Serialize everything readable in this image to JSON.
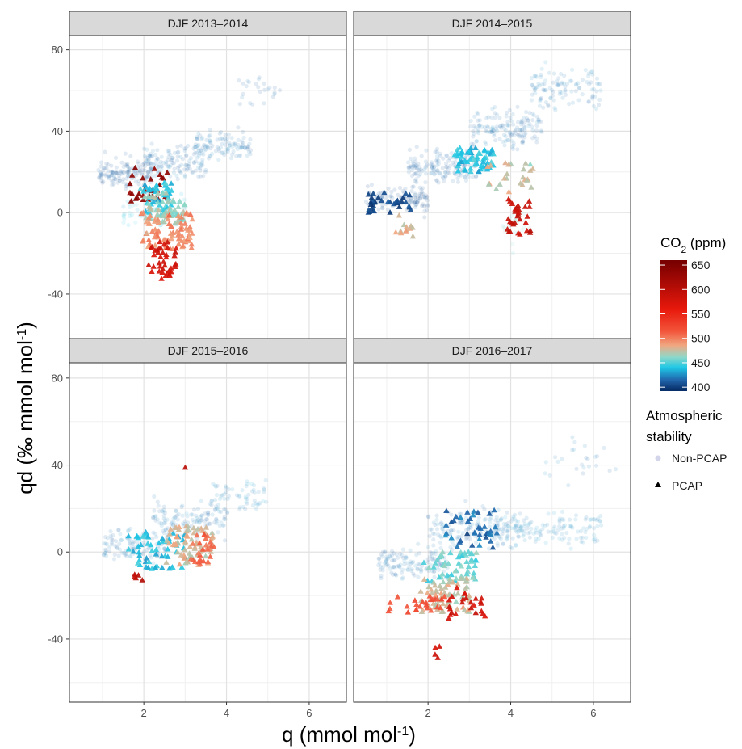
{
  "chart_data": {
    "type": "scatter",
    "facet_layout": "2x2 grid, shared axes",
    "xlabel_parts": {
      "main": "q (mmol mol",
      "sup": "-1",
      "close": ")"
    },
    "ylabel_parts": {
      "main": "qd (‰ mmol mol",
      "sup": "-1",
      "close": ")"
    },
    "xlim": [
      0.2,
      6.9
    ],
    "ylim": [
      -69,
      87
    ],
    "x_ticks": [
      2,
      4,
      6
    ],
    "x_tick_labels": [
      "2",
      "4",
      "6"
    ],
    "y_ticks": [
      -40,
      0,
      40,
      80
    ],
    "y_tick_labels": [
      "-40",
      "0",
      "40",
      "80"
    ],
    "grid": true,
    "color_scale": {
      "title_parts": {
        "main": "CO",
        "sub": "2",
        "rest": " (ppm)"
      },
      "breaks": [
        400,
        450,
        500,
        550,
        600,
        650
      ],
      "break_labels": [
        "400",
        "450",
        "500",
        "550",
        "600",
        "650"
      ],
      "limits": [
        392,
        660
      ],
      "stops": [
        {
          "value": 395,
          "color": "#08306b"
        },
        {
          "value": 415,
          "color": "#2166ac"
        },
        {
          "value": 440,
          "color": "#1ec8e6"
        },
        {
          "value": 462,
          "color": "#8fd8c8"
        },
        {
          "value": 485,
          "color": "#f0a882"
        },
        {
          "value": 515,
          "color": "#f2543a"
        },
        {
          "value": 560,
          "color": "#e8180c"
        },
        {
          "value": 655,
          "color": "#7a0000"
        }
      ]
    },
    "shape_legend": {
      "title_lines": [
        "Atmospheric",
        "stability"
      ],
      "items": [
        {
          "label": "Non-PCAP",
          "shape": "circle",
          "color": "#c8cce6"
        },
        {
          "label": "PCAP",
          "shape": "triangle",
          "color": "#000000"
        }
      ]
    },
    "panels": [
      {
        "title": "DJF 2013–2014",
        "non_pcap_clusters": [
          {
            "x": [
              0.9,
              2.2
            ],
            "y": [
              10,
              28
            ],
            "co2": 412,
            "n": 140
          },
          {
            "x": [
              2.0,
              3.5
            ],
            "y": [
              15,
              35
            ],
            "co2": 418,
            "n": 130
          },
          {
            "x": [
              3.2,
              4.6
            ],
            "y": [
              25,
              42
            ],
            "co2": 420,
            "n": 110
          },
          {
            "x": [
              4.3,
              5.3
            ],
            "y": [
              50,
              68
            ],
            "co2": 415,
            "n": 25
          },
          {
            "x": [
              1.5,
              3.0
            ],
            "y": [
              -10,
              10
            ],
            "co2": 440,
            "n": 60
          }
        ],
        "pcap_clusters": [
          {
            "x": [
              1.6,
              2.6
            ],
            "y": [
              5,
              22
            ],
            "co2": 640,
            "n": 30
          },
          {
            "x": [
              1.9,
              2.7
            ],
            "y": [
              0,
              15
            ],
            "co2": 440,
            "n": 45
          },
          {
            "x": [
              2.0,
              3.0
            ],
            "y": [
              -6,
              10
            ],
            "co2": 465,
            "n": 60
          },
          {
            "x": [
              1.9,
              3.2
            ],
            "y": [
              -18,
              0
            ],
            "co2": 495,
            "n": 80
          },
          {
            "x": [
              2.1,
              2.8
            ],
            "y": [
              -33,
              -14
            ],
            "co2": 580,
            "n": 40
          }
        ]
      },
      {
        "title": "DJF 2014–2015",
        "non_pcap_clusters": [
          {
            "x": [
              0.5,
              2.0
            ],
            "y": [
              0,
              15
            ],
            "co2": 408,
            "n": 110
          },
          {
            "x": [
              1.5,
              3.2
            ],
            "y": [
              12,
              32
            ],
            "co2": 415,
            "n": 160
          },
          {
            "x": [
              3.0,
              4.8
            ],
            "y": [
              30,
              52
            ],
            "co2": 418,
            "n": 150
          },
          {
            "x": [
              4.5,
              6.2
            ],
            "y": [
              48,
              75
            ],
            "co2": 420,
            "n": 110
          },
          {
            "x": [
              3.8,
              4.5
            ],
            "y": [
              -20,
              5
            ],
            "co2": 460,
            "n": 25
          }
        ],
        "pcap_clusters": [
          {
            "x": [
              0.5,
              1.6
            ],
            "y": [
              -2,
              10
            ],
            "co2": 405,
            "n": 35
          },
          {
            "x": [
              1.2,
              1.9
            ],
            "y": [
              -12,
              0
            ],
            "co2": 480,
            "n": 12
          },
          {
            "x": [
              2.6,
              3.6
            ],
            "y": [
              20,
              32
            ],
            "co2": 440,
            "n": 60
          },
          {
            "x": [
              3.4,
              4.6
            ],
            "y": [
              10,
              25
            ],
            "co2": 475,
            "n": 25
          },
          {
            "x": [
              3.9,
              4.5
            ],
            "y": [
              -12,
              8
            ],
            "co2": 590,
            "n": 30
          }
        ]
      },
      {
        "title": "DJF 2015–2016",
        "non_pcap_clusters": [
          {
            "x": [
              1.0,
              2.6
            ],
            "y": [
              -5,
              12
            ],
            "co2": 418,
            "n": 110
          },
          {
            "x": [
              2.2,
              4.0
            ],
            "y": [
              5,
              25
            ],
            "co2": 420,
            "n": 130
          },
          {
            "x": [
              3.6,
              5.0
            ],
            "y": [
              15,
              36
            ],
            "co2": 425,
            "n": 60
          }
        ],
        "pcap_clusters": [
          {
            "x": [
              1.6,
              3.0
            ],
            "y": [
              -8,
              10
            ],
            "co2": 440,
            "n": 55
          },
          {
            "x": [
              2.5,
              3.8
            ],
            "y": [
              -6,
              12
            ],
            "co2": 480,
            "n": 70
          },
          {
            "x": [
              3.1,
              3.7
            ],
            "y": [
              -6,
              8
            ],
            "co2": 510,
            "n": 25
          },
          {
            "x": [
              1.7,
              2.1
            ],
            "y": [
              -13,
              -9
            ],
            "co2": 600,
            "n": 5
          },
          {
            "x": [
              2.95,
              3.05
            ],
            "y": [
              37,
              39
            ],
            "co2": 600,
            "n": 1
          }
        ]
      },
      {
        "title": "DJF 2016–2017",
        "non_pcap_clusters": [
          {
            "x": [
              0.8,
              2.5
            ],
            "y": [
              -14,
              4
            ],
            "co2": 418,
            "n": 130
          },
          {
            "x": [
              2.0,
              4.2
            ],
            "y": [
              0,
              22
            ],
            "co2": 420,
            "n": 160
          },
          {
            "x": [
              3.8,
              6.2
            ],
            "y": [
              2,
              20
            ],
            "co2": 425,
            "n": 130
          },
          {
            "x": [
              4.8,
              6.6
            ],
            "y": [
              25,
              58
            ],
            "co2": 420,
            "n": 25
          }
        ],
        "pcap_clusters": [
          {
            "x": [
              2.4,
              3.7
            ],
            "y": [
              2,
              20
            ],
            "co2": 415,
            "n": 40
          },
          {
            "x": [
              1.8,
              3.2
            ],
            "y": [
              -14,
              0
            ],
            "co2": 455,
            "n": 55
          },
          {
            "x": [
              1.8,
              3.0
            ],
            "y": [
              -28,
              -12
            ],
            "co2": 475,
            "n": 70
          },
          {
            "x": [
              1.0,
              2.4
            ],
            "y": [
              -28,
              -20
            ],
            "co2": 520,
            "n": 25
          },
          {
            "x": [
              2.5,
              3.4
            ],
            "y": [
              -32,
              -16
            ],
            "co2": 580,
            "n": 25
          },
          {
            "x": [
              2.1,
              2.3
            ],
            "y": [
              -50,
              -38
            ],
            "co2": 580,
            "n": 4
          }
        ]
      }
    ]
  }
}
